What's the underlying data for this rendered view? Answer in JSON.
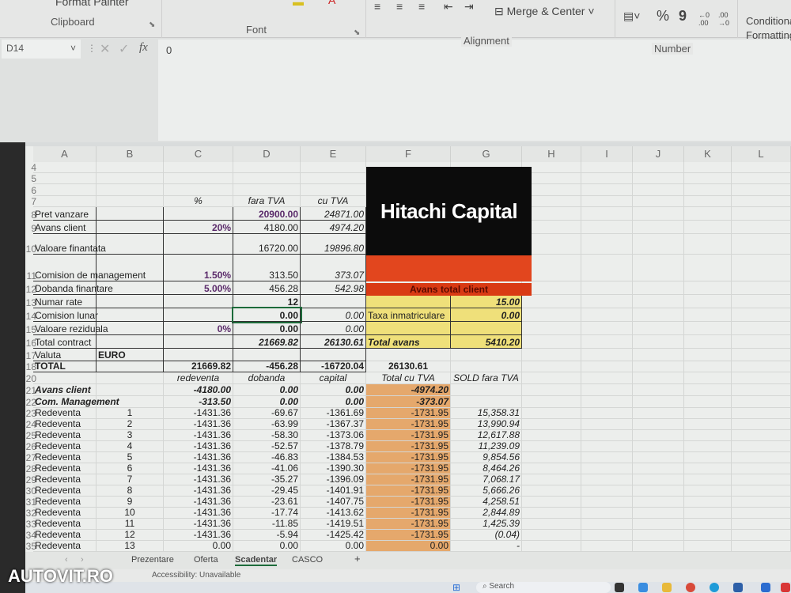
{
  "ribbon": {
    "clipboard": {
      "format_painter": "Format Painter",
      "label": "Clipboard"
    },
    "font": {
      "label": "Font"
    },
    "alignment": {
      "merge_center": "Merge & Center",
      "label": "Alignment"
    },
    "number": {
      "percent": "%",
      "comma": "9",
      "label": "Number"
    },
    "styles": {
      "conditional_formatting": "Conditional Formatting"
    }
  },
  "formula_bar": {
    "name_box": "D14",
    "fx": "fx",
    "value": "0"
  },
  "columns": [
    "A",
    "B",
    "C",
    "D",
    "E",
    "F",
    "G",
    "H",
    "I",
    "J",
    "K",
    "L"
  ],
  "logo": {
    "text": "Hitachi Capital",
    "band": "Avans total client"
  },
  "rows": [
    {
      "n": "4",
      "cells": {}
    },
    {
      "n": "5",
      "cells": {}
    },
    {
      "n": "6",
      "cells": {}
    },
    {
      "n": "7",
      "cells": {
        "C": "%",
        "D": "fara TVA",
        "E": "cu TVA"
      }
    },
    {
      "n": "8",
      "cells": {
        "A": "Pret vanzare",
        "D": "20900.00",
        "E": "24871.00"
      }
    },
    {
      "n": "9",
      "cells": {
        "A": "Avans client",
        "C": "20%",
        "D": "4180.00",
        "E": "4974.20"
      }
    },
    {
      "n": "10",
      "cells": {
        "A": "Valoare finantata",
        "D": "16720.00",
        "E": "19896.80"
      }
    },
    {
      "n": "11",
      "cells": {
        "A": "Comision de management",
        "C": "1.50%",
        "D": "313.50",
        "E": "373.07"
      }
    },
    {
      "n": "12",
      "cells": {
        "A": "Dobanda finantare",
        "C": "5.00%",
        "D": "456.28",
        "E": "542.98"
      }
    },
    {
      "n": "13",
      "cells": {
        "A": "Numar rate",
        "D": "12",
        "G": "15.00"
      }
    },
    {
      "n": "14",
      "cells": {
        "A": "Comision lunar",
        "D": "0.00",
        "E": "0.00",
        "F": "Taxa inmatriculare",
        "G": "0.00"
      }
    },
    {
      "n": "15",
      "cells": {
        "A": "Valoare reziduala",
        "C": "0%",
        "D": "0.00",
        "E": "0.00"
      }
    },
    {
      "n": "16",
      "cells": {
        "A": "Total contract",
        "D": "21669.82",
        "E": "26130.61",
        "F": "Total avans",
        "G": "5410.20"
      }
    },
    {
      "n": "17",
      "cells": {
        "A": "Valuta",
        "B": "EURO"
      }
    },
    {
      "n": "18",
      "cells": {
        "A": "TOTAL",
        "C": "21669.82",
        "D": "-456.28",
        "E": "-16720.04",
        "F": "26130.61"
      }
    },
    {
      "n": "20",
      "cells": {
        "C": "redeventa",
        "D": "dobanda",
        "E": "capital",
        "F": "Total cu TVA",
        "G": "SOLD fara TVA"
      }
    },
    {
      "n": "21",
      "cells": {
        "A": "Avans client",
        "C": "-4180.00",
        "D": "0.00",
        "E": "0.00",
        "F": "-4974.20"
      }
    },
    {
      "n": "22",
      "cells": {
        "A": "Com. Management",
        "C": "-313.50",
        "D": "0.00",
        "E": "0.00",
        "F": "-373.07"
      }
    },
    {
      "n": "23",
      "cells": {
        "A": "Redeventa",
        "B": "1",
        "C": "-1431.36",
        "D": "-69.67",
        "E": "-1361.69",
        "F": "-1731.95",
        "G": "15,358.31"
      }
    },
    {
      "n": "24",
      "cells": {
        "A": "Redeventa",
        "B": "2",
        "C": "-1431.36",
        "D": "-63.99",
        "E": "-1367.37",
        "F": "-1731.95",
        "G": "13,990.94"
      }
    },
    {
      "n": "25",
      "cells": {
        "A": "Redeventa",
        "B": "3",
        "C": "-1431.36",
        "D": "-58.30",
        "E": "-1373.06",
        "F": "-1731.95",
        "G": "12,617.88"
      }
    },
    {
      "n": "26",
      "cells": {
        "A": "Redeventa",
        "B": "4",
        "C": "-1431.36",
        "D": "-52.57",
        "E": "-1378.79",
        "F": "-1731.95",
        "G": "11,239.09"
      }
    },
    {
      "n": "27",
      "cells": {
        "A": "Redeventa",
        "B": "5",
        "C": "-1431.36",
        "D": "-46.83",
        "E": "-1384.53",
        "F": "-1731.95",
        "G": "9,854.56"
      }
    },
    {
      "n": "28",
      "cells": {
        "A": "Redeventa",
        "B": "6",
        "C": "-1431.36",
        "D": "-41.06",
        "E": "-1390.30",
        "F": "-1731.95",
        "G": "8,464.26"
      }
    },
    {
      "n": "29",
      "cells": {
        "A": "Redeventa",
        "B": "7",
        "C": "-1431.36",
        "D": "-35.27",
        "E": "-1396.09",
        "F": "-1731.95",
        "G": "7,068.17"
      }
    },
    {
      "n": "30",
      "cells": {
        "A": "Redeventa",
        "B": "8",
        "C": "-1431.36",
        "D": "-29.45",
        "E": "-1401.91",
        "F": "-1731.95",
        "G": "5,666.26"
      }
    },
    {
      "n": "31",
      "cells": {
        "A": "Redeventa",
        "B": "9",
        "C": "-1431.36",
        "D": "-23.61",
        "E": "-1407.75",
        "F": "-1731.95",
        "G": "4,258.51"
      }
    },
    {
      "n": "32",
      "cells": {
        "A": "Redeventa",
        "B": "10",
        "C": "-1431.36",
        "D": "-17.74",
        "E": "-1413.62",
        "F": "-1731.95",
        "G": "2,844.89"
      }
    },
    {
      "n": "33",
      "cells": {
        "A": "Redeventa",
        "B": "11",
        "C": "-1431.36",
        "D": "-11.85",
        "E": "-1419.51",
        "F": "-1731.95",
        "G": "1,425.39"
      }
    },
    {
      "n": "34",
      "cells": {
        "A": "Redeventa",
        "B": "12",
        "C": "-1431.36",
        "D": "-5.94",
        "E": "-1425.42",
        "F": "-1731.95",
        "G": "(0.04)"
      }
    },
    {
      "n": "35",
      "cells": {
        "A": "Redeventa",
        "B": "13",
        "C": "0.00",
        "D": "0.00",
        "E": "0.00",
        "F": "0.00",
        "G": "-"
      }
    }
  ],
  "sheet_tabs": [
    {
      "label": "Prezentare"
    },
    {
      "label": "Oferta"
    },
    {
      "label": "Scadentar",
      "active": true
    },
    {
      "label": "CASCO"
    }
  ],
  "add_sheet": "+",
  "status": "Accessibility: Unavailable",
  "taskbar": {
    "search": "Search"
  },
  "watermark": "AUTOVIT.RO",
  "colors": {
    "logo_bg": "#0c0c0c",
    "red": "#e2461e",
    "yellow": "#efe07a",
    "orange": "#e5a86c",
    "accent": "#1c6b3a"
  }
}
